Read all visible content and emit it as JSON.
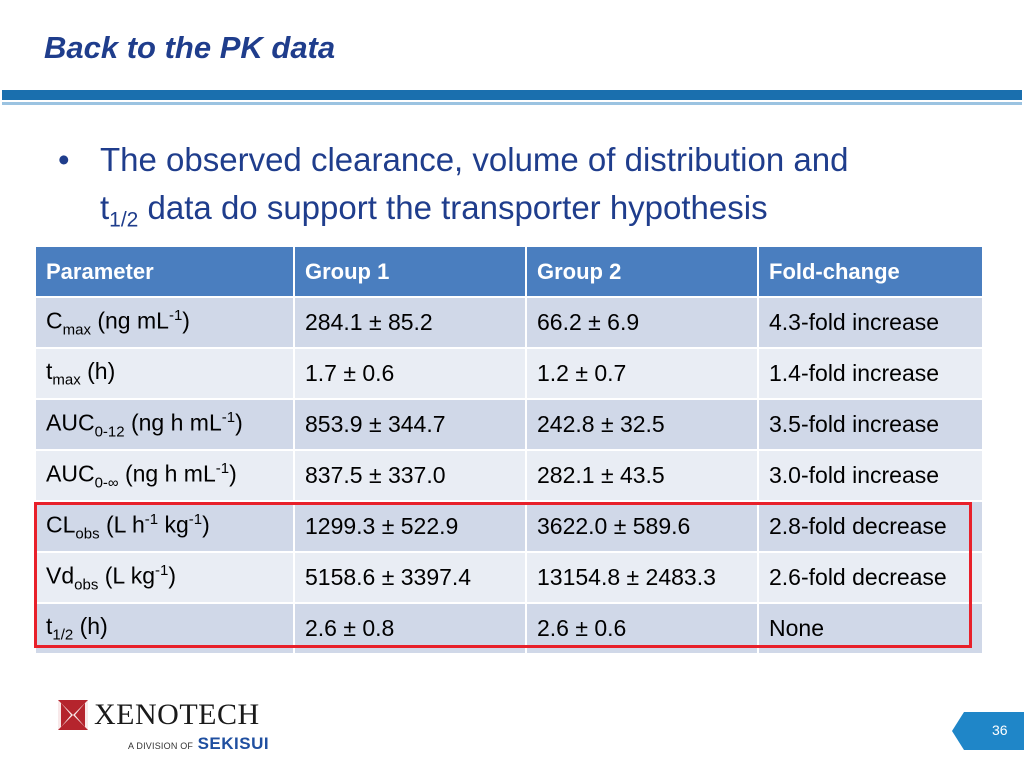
{
  "slide": {
    "title": "Back to the PK data",
    "bullet_dot": "•",
    "bullet_line1": "The observed clearance, volume of distribution and",
    "bullet_line2_prefix": "t",
    "bullet_line2_sub": "1/2",
    "bullet_line2_rest": " data do support the transporter hypothesis",
    "page_number": "36"
  },
  "table": {
    "headers": [
      "Parameter",
      "Group 1",
      "Group 2",
      "Fold-change"
    ],
    "rows": [
      {
        "param_base": "C",
        "param_sub": "max",
        "param_unit_pre": " (ng mL",
        "param_sup": "-1",
        "param_unit_post": ")",
        "group1": "284.1 ± 85.2",
        "group2": "66.2 ± 6.9",
        "fold": "4.3-fold increase"
      },
      {
        "param_base": "t",
        "param_sub": "max",
        "param_unit_pre": " (h)",
        "param_sup": "",
        "param_unit_post": "",
        "group1": "1.7 ± 0.6",
        "group2": "1.2 ± 0.7",
        "fold": "1.4-fold increase"
      },
      {
        "param_base": "AUC",
        "param_sub": "0-12",
        "param_unit_pre": " (ng h mL",
        "param_sup": "-1",
        "param_unit_post": ")",
        "group1": "853.9 ± 344.7",
        "group2": "242.8 ± 32.5",
        "fold": "3.5-fold increase"
      },
      {
        "param_base": "AUC",
        "param_sub": "0-∞",
        "param_unit_pre": " (ng h mL",
        "param_sup": "-1",
        "param_unit_post": ")",
        "group1": "837.5 ± 337.0",
        "group2": "282.1 ± 43.5",
        "fold": "3.0-fold increase"
      },
      {
        "param_base": "CL",
        "param_sub": "obs",
        "param_unit_pre": " (L h",
        "param_sup": "-1",
        "param_unit_mid": " kg",
        "param_sup2": "-1",
        "param_unit_post": ")",
        "group1": "1299.3 ± 522.9",
        "group2": "3622.0 ± 589.6",
        "fold": "2.8-fold decrease"
      },
      {
        "param_base": "Vd",
        "param_sub": "obs",
        "param_unit_pre": " (L kg",
        "param_sup": "-1",
        "param_unit_post": ")",
        "group1": "5158.6 ± 3397.4",
        "group2": "13154.8 ± 2483.3",
        "fold": "2.6-fold decrease"
      },
      {
        "param_base": "t",
        "param_sub": "1/2",
        "param_unit_pre": " (h)",
        "param_sup": "",
        "param_unit_post": "",
        "group1": "2.6 ± 0.8",
        "group2": "2.6 ± 0.6",
        "fold": "None"
      }
    ]
  },
  "logo": {
    "name": "XENOTECH",
    "subtitle": "A DIVISION OF",
    "brand": "SEKISUI"
  },
  "colors": {
    "title": "#1f3d8c",
    "header_bg": "#4a7ebf",
    "row_odd": "#d0d8e8",
    "row_even": "#e9edf4",
    "highlight": "#e8202a",
    "rule": "#1a6fae"
  }
}
